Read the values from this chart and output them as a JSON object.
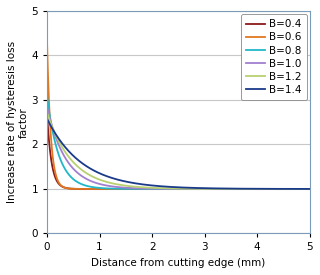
{
  "xlabel": "Distance from cutting edge (mm)",
  "ylabel": "Increase rate of hysteresis loss\nfactor",
  "xlim": [
    0,
    5
  ],
  "ylim": [
    0,
    5
  ],
  "xticks": [
    0,
    1,
    2,
    3,
    4,
    5
  ],
  "yticks": [
    0,
    1,
    2,
    3,
    4,
    5
  ],
  "series": [
    {
      "label": "B=0.4",
      "color": "#8B1A1A",
      "peak": 2.72,
      "decay": 12.0
    },
    {
      "label": "B=0.6",
      "color": "#E07820",
      "peak": 4.35,
      "decay": 14.0
    },
    {
      "label": "B=0.8",
      "color": "#20B8C8",
      "peak": 3.1,
      "decay": 4.5
    },
    {
      "label": "B=1.0",
      "color": "#A080D0",
      "peak": 2.85,
      "decay": 2.8
    },
    {
      "label": "B=1.2",
      "color": "#B8D070",
      "peak": 2.72,
      "decay": 2.1
    },
    {
      "label": "B=1.4",
      "color": "#1A3A8A",
      "peak": 2.58,
      "decay": 1.5
    }
  ],
  "background_color": "#ffffff",
  "grid_color": "#c8c8c8",
  "spine_color": "#7B9BB8",
  "legend_fontsize": 7.5,
  "axis_fontsize": 7.5,
  "tick_fontsize": 7.5,
  "linewidth": 1.3
}
